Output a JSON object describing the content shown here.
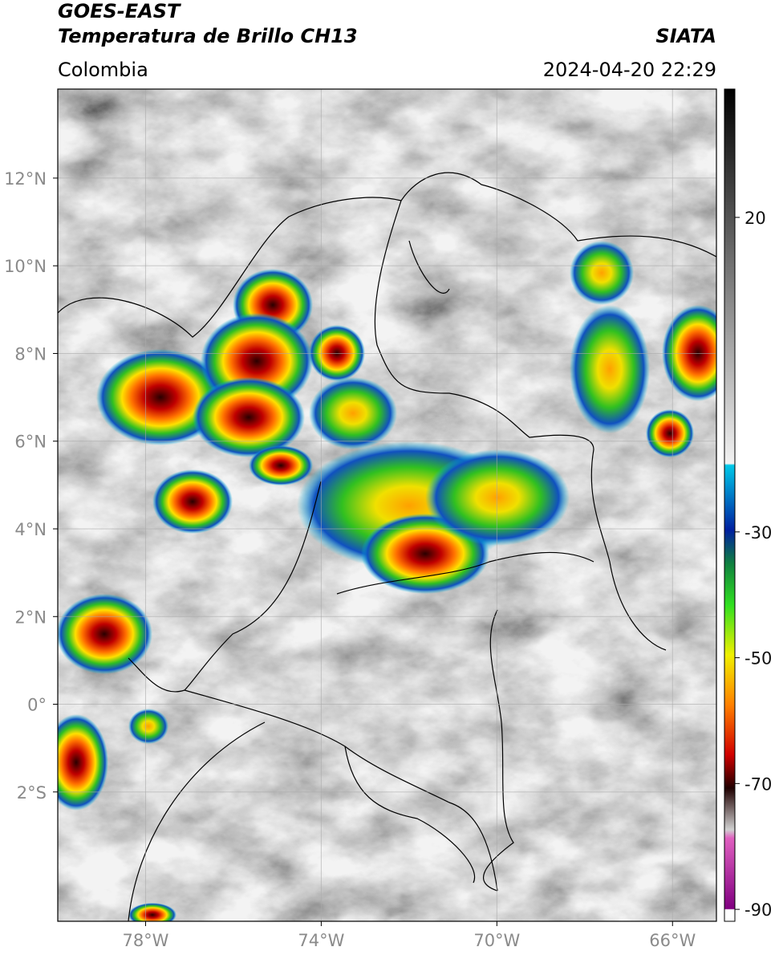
{
  "header": {
    "satellite": "GOES-EAST",
    "product": "Temperatura de Brillo CH13",
    "source": "SIATA",
    "region": "Colombia",
    "datetime": "2024-04-20 22:29"
  },
  "map": {
    "xlim": [
      -80.0,
      -65.0
    ],
    "ylim": [
      -4.95,
      14.03
    ],
    "grid": true,
    "xticks": [
      {
        "value": -78,
        "label": "78°W"
      },
      {
        "value": -74,
        "label": "74°W"
      },
      {
        "value": -70,
        "label": "70°W"
      },
      {
        "value": -66,
        "label": "66°W"
      }
    ],
    "yticks": [
      {
        "value": 12,
        "label": "12°N"
      },
      {
        "value": 10,
        "label": "10°N"
      },
      {
        "value": 8,
        "label": "8°N"
      },
      {
        "value": 6,
        "label": "6°N"
      },
      {
        "value": 4,
        "label": "4°N"
      },
      {
        "value": 2,
        "label": "2°N"
      },
      {
        "value": 0,
        "label": "0°"
      },
      {
        "value": -2,
        "label": "2°S"
      }
    ]
  },
  "colorbar": {
    "lim": [
      -91.9,
      40.4
    ],
    "ticks": [
      20,
      -30,
      -50,
      -70,
      -90
    ]
  }
}
